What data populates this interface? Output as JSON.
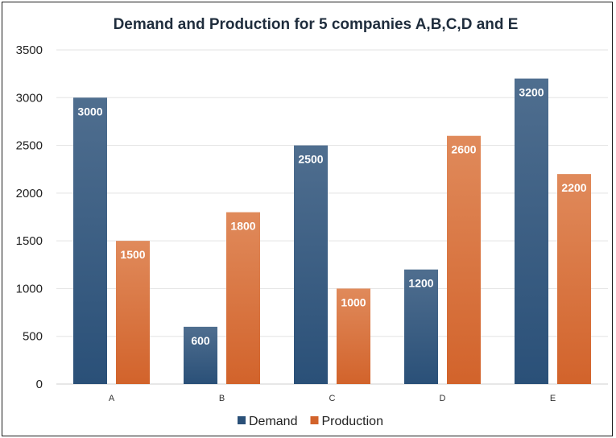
{
  "colors": {
    "demand_top": "#4f6e8f",
    "demand_bottom": "#2a5078",
    "production_top": "#e08a5b",
    "production_bottom": "#d2632b"
  },
  "chart_data": {
    "type": "bar",
    "title": "Demand and Production for 5 companies A,B,C,D and E",
    "xlabel": "",
    "ylabel": "",
    "categories": [
      "A",
      "B",
      "C",
      "D",
      "E"
    ],
    "series": [
      {
        "name": "Demand",
        "values": [
          3000,
          600,
          2500,
          1200,
          3200
        ]
      },
      {
        "name": "Production",
        "values": [
          1500,
          1800,
          1000,
          2600,
          2200
        ]
      }
    ],
    "ylim": [
      0,
      3500
    ],
    "yticks": [
      0,
      500,
      1000,
      1500,
      2000,
      2500,
      3000,
      3500
    ],
    "grid": true,
    "data_labels": true,
    "legend_position": "bottom"
  }
}
